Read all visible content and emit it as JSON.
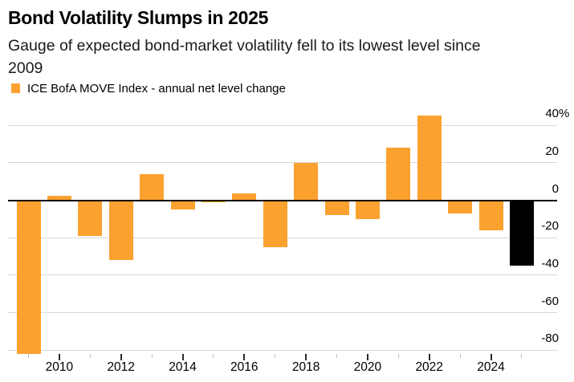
{
  "header": {
    "title": "Bond Volatility Slumps in 2025",
    "subtitle_line1": "Gauge of expected bond-market volatility fell to its lowest level since",
    "subtitle_line2": "2009"
  },
  "legend": {
    "swatch_color": "#FBA12F",
    "label": "ICE BofA MOVE Index - annual net level change"
  },
  "chart_data": {
    "type": "bar",
    "title": "Bond Volatility Slumps in 2025",
    "subtitle": "Gauge of expected bond-market volatility fell to its lowest level since 2009",
    "series_name": "ICE BofA MOVE Index - annual net level change",
    "unit": "%",
    "categories": [
      2009,
      2010,
      2011,
      2012,
      2013,
      2014,
      2015,
      2016,
      2017,
      2018,
      2019,
      2020,
      2021,
      2022,
      2023,
      2024,
      2025
    ],
    "values": [
      -82,
      2.5,
      -19,
      -32,
      14,
      -5,
      -1,
      3.5,
      -25,
      20,
      -8,
      -10,
      28,
      45,
      -7,
      -16,
      -35
    ],
    "bar_color_default": "#FBA12F",
    "highlight": {
      "category": 2025,
      "color": "#000000"
    },
    "ylim": [
      -84,
      47
    ],
    "yticks": [
      40,
      20,
      0,
      -20,
      -40,
      -60,
      -80
    ],
    "ytick_labels": [
      "40%",
      "20",
      "0",
      "-20",
      "-40",
      "-60",
      "-80"
    ],
    "xtick_labels": [
      "2010",
      "2012",
      "2014",
      "2016",
      "2018",
      "2020",
      "2022",
      "2024"
    ],
    "grid": "horizontal",
    "legend_position": "top-left",
    "y_axis_position": "right"
  }
}
